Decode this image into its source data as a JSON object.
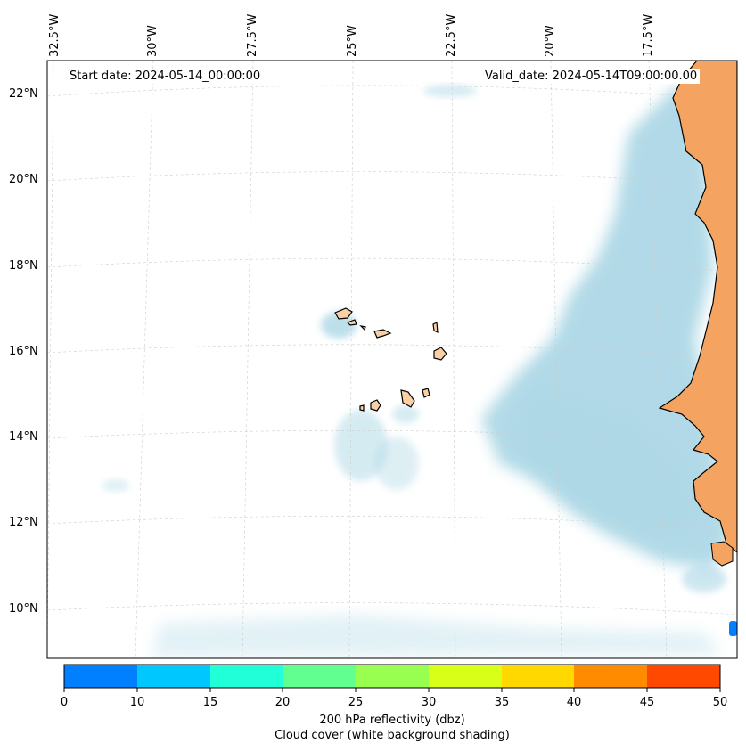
{
  "map": {
    "start_label": "Start date: 2024-05-14_00:00:00",
    "valid_label": "Valid_date: 2024-05-14T09:00:00.00",
    "lon_labels": [
      "32.5°W",
      "30°W",
      "27.5°W",
      "25°W",
      "22.5°W",
      "20°W",
      "17.5°W"
    ],
    "lat_labels": [
      "22°N",
      "20°N",
      "18°N",
      "16°N",
      "14°N",
      "12°N",
      "10°N"
    ],
    "colors": {
      "land": "#f4a460",
      "islands": "#f9cfa4",
      "cloud": "#add8e6",
      "gridline": "#cccccc",
      "echo": "#0080ff"
    }
  },
  "colorbar": {
    "ticks": [
      "0",
      "10",
      "15",
      "20",
      "25",
      "30",
      "35",
      "40",
      "45",
      "50"
    ],
    "colors": [
      "#0080ff",
      "#00c8ff",
      "#20ffd8",
      "#60ff90",
      "#98ff50",
      "#d8ff18",
      "#ffd800",
      "#ff8c00",
      "#ff4800"
    ],
    "label_line1": "200 hPa reflectivity (dbz)",
    "label_line2": "Cloud cover (white background shading)"
  }
}
